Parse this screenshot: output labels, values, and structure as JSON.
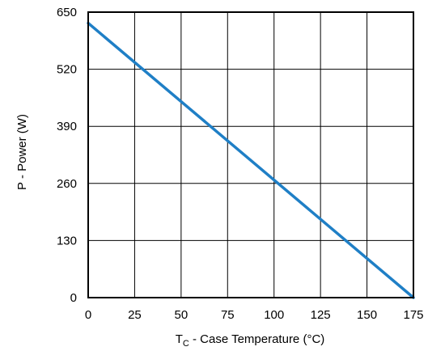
{
  "chart_data": {
    "type": "line",
    "xlabel_main": "T",
    "xlabel_sub": "C",
    "xlabel_rest": " - Case Temperature (°C)",
    "ylabel": "P - Power (W)",
    "xlim": [
      0,
      175
    ],
    "ylim": [
      0,
      650
    ],
    "xticks": [
      0,
      25,
      50,
      75,
      100,
      125,
      150,
      175
    ],
    "yticks": [
      0,
      130,
      260,
      390,
      520,
      650
    ],
    "xtick_labels": [
      "0",
      "25",
      "50",
      "75",
      "100",
      "125",
      "150",
      "175"
    ],
    "ytick_labels": [
      "0",
      "130",
      "260",
      "390",
      "520",
      "650"
    ],
    "grid": true,
    "series": [
      {
        "color": "#1f7fc6",
        "x": [
          0,
          175
        ],
        "y": [
          625,
          0
        ]
      }
    ]
  }
}
